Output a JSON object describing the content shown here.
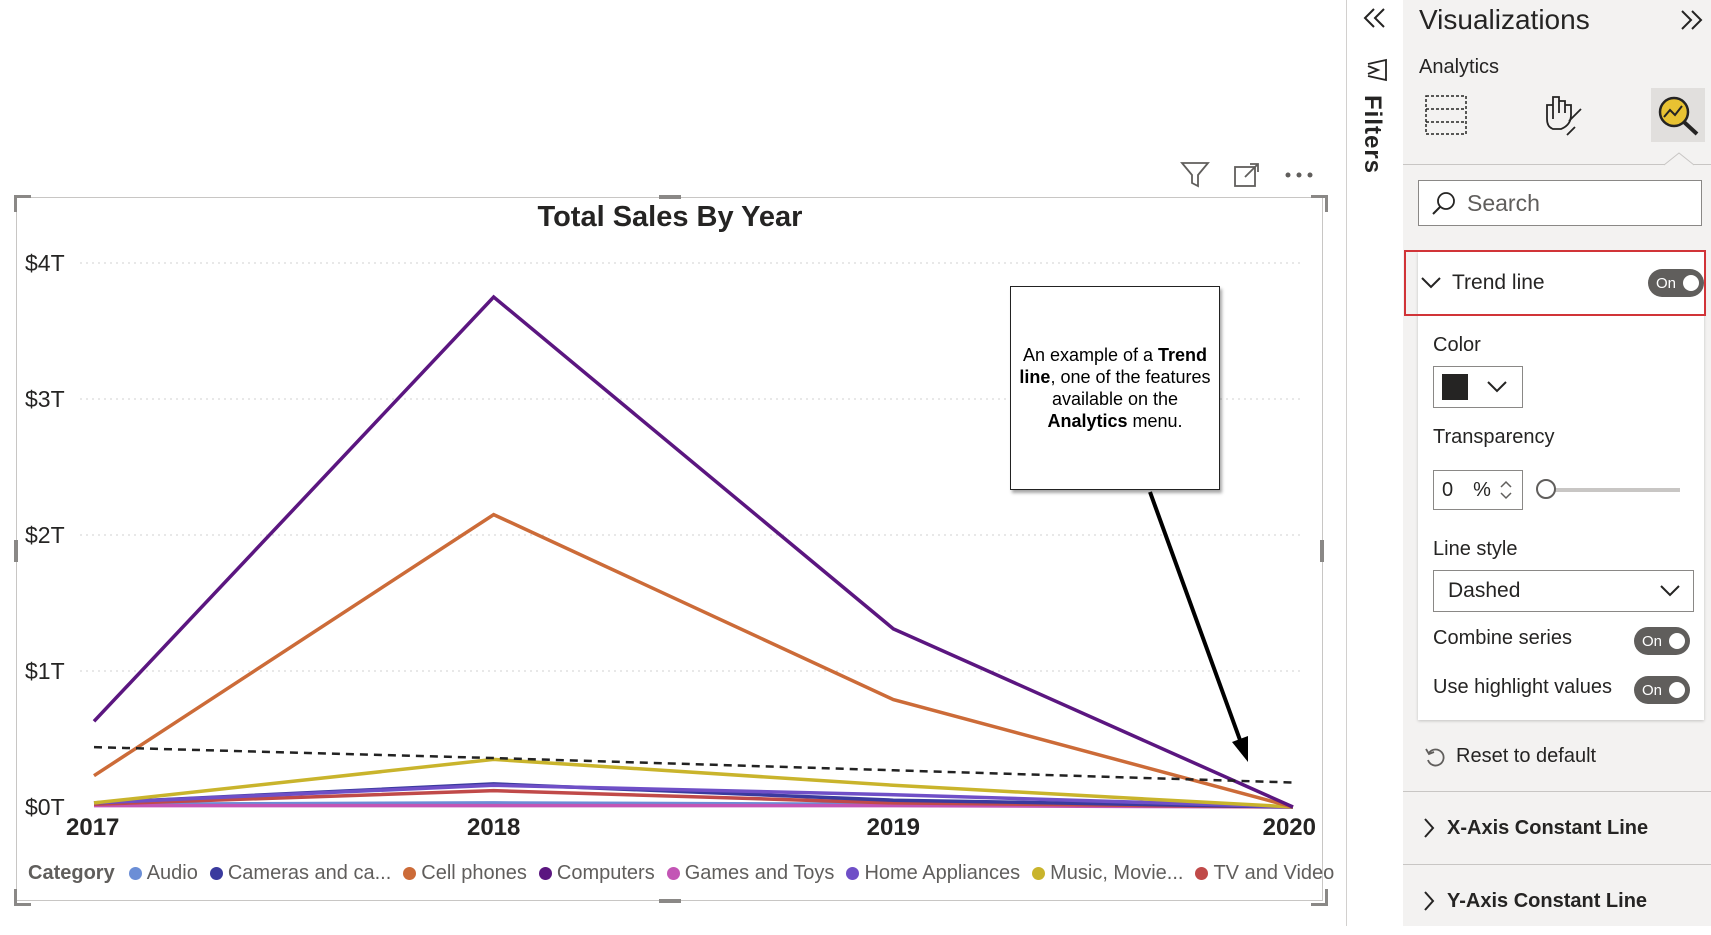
{
  "chart_data": {
    "type": "line",
    "title": "Total Sales By Year",
    "x": [
      "2017",
      "2018",
      "2019",
      "2020"
    ],
    "y_ticks": [
      "$0T",
      "$1T",
      "$2T",
      "$3T",
      "$4T"
    ],
    "ylim": [
      0,
      4
    ],
    "grid": true,
    "legend_title": "Category",
    "legend_position": "bottom",
    "series": [
      {
        "name": "Audio",
        "color": "#6b8ed6",
        "values": [
          0.02,
          0.03,
          0.02,
          0.0
        ]
      },
      {
        "name": "Cameras and ca...",
        "color": "#3a3a9e",
        "values": [
          0.03,
          0.17,
          0.05,
          0.0
        ]
      },
      {
        "name": "Cell phones",
        "color": "#cc6b38",
        "values": [
          0.23,
          2.15,
          0.79,
          0.0
        ]
      },
      {
        "name": "Computers",
        "color": "#5b1680",
        "values": [
          0.63,
          3.75,
          1.31,
          0.0
        ]
      },
      {
        "name": "Games and Toys",
        "color": "#c355b5",
        "values": [
          0.01,
          0.01,
          0.01,
          0.0
        ]
      },
      {
        "name": "Home Appliances",
        "color": "#6f4fc7",
        "values": [
          0.03,
          0.16,
          0.09,
          0.0
        ]
      },
      {
        "name": "Music, Movie...",
        "color": "#c9b42c",
        "values": [
          0.03,
          0.35,
          0.16,
          0.0
        ]
      },
      {
        "name": "TV and Video",
        "color": "#c04a49",
        "values": [
          0.02,
          0.12,
          0.03,
          0.0
        ]
      }
    ],
    "trend_line": {
      "style": "dashed",
      "color": "#222222",
      "values": [
        0.44,
        0.36,
        0.27,
        0.18
      ]
    }
  },
  "callout": {
    "p1": "An example of a ",
    "b1": "Trend line",
    "p2": ", one of the features available on the ",
    "b2": "Analytics",
    "p3": " menu."
  },
  "toolbar": {
    "filter_icon": "filter-icon",
    "focus_icon": "focus-mode-icon",
    "more_icon": "more-options-icon"
  },
  "filters": {
    "label": "Filters"
  },
  "pane": {
    "title": "Visualizations",
    "subtitle": "Analytics",
    "search_placeholder": "Search",
    "trend_line": {
      "label": "Trend line",
      "toggle": "On",
      "color_label": "Color",
      "color_value": "#252423",
      "transparency_label": "Transparency",
      "transparency_value": "0",
      "transparency_unit": "%",
      "transparency_level": 0,
      "line_style_label": "Line style",
      "line_style_value": "Dashed",
      "combine_series_label": "Combine series",
      "combine_series_toggle": "On",
      "use_highlight_label": "Use highlight values",
      "use_highlight_toggle": "On"
    },
    "reset_label": "Reset to default",
    "sections": [
      "X-Axis Constant Line",
      "Y-Axis Constant Line"
    ]
  }
}
